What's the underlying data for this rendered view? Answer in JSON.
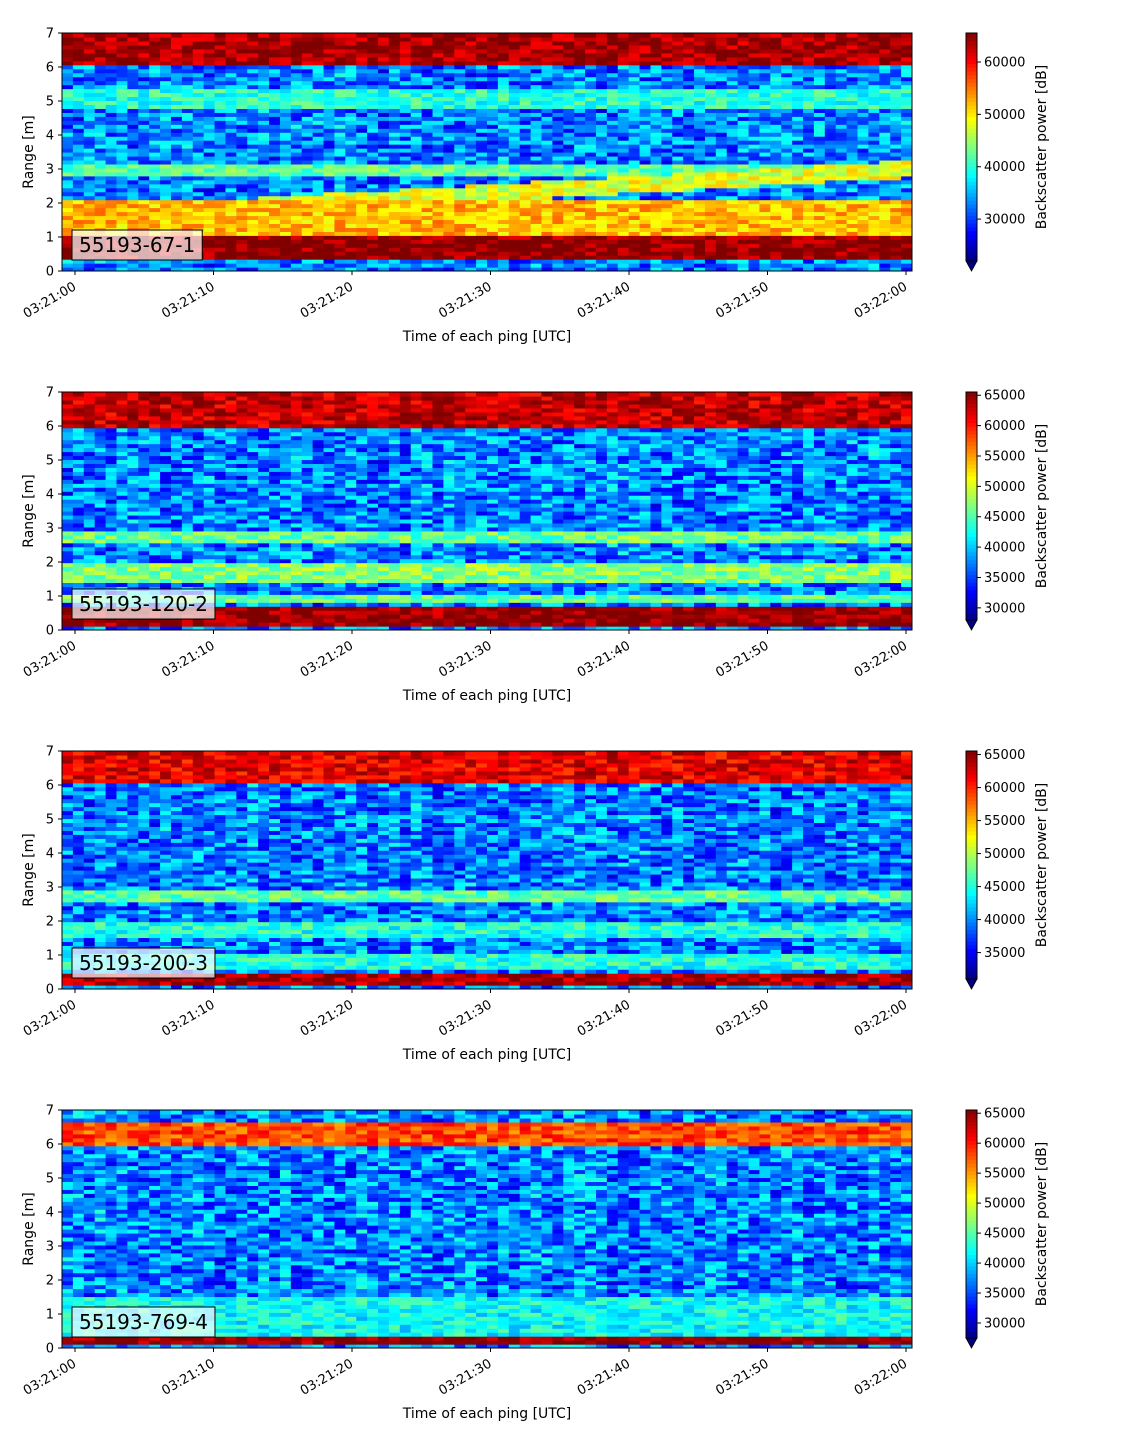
{
  "chart_data": [
    {
      "type": "heatmap",
      "panel_label": "55193-67-1",
      "xlabel": "Time of each ping [UTC]",
      "ylabel": "Range [m]",
      "x_ticks": [
        "03:21:00",
        "03:21:10",
        "03:21:20",
        "03:21:30",
        "03:21:40",
        "03:21:50",
        "03:22:00"
      ],
      "xlim": [
        "03:21:00",
        "03:22:00"
      ],
      "y_ticks": [
        0,
        1,
        2,
        3,
        4,
        5,
        6,
        7
      ],
      "ylim": [
        0,
        7
      ],
      "colorbar": {
        "label": "Backscatter power [dB]",
        "ticks": [
          30000,
          40000,
          50000,
          60000
        ],
        "range": [
          22000,
          65535
        ],
        "colormap": "jet",
        "extend": "min"
      },
      "features": [
        {
          "desc": "surface band",
          "range_m": [
            0.3,
            1.0
          ],
          "value": 65000
        },
        {
          "desc": "bright layer",
          "range_m": [
            1.0,
            2.1
          ],
          "value": 52000
        },
        {
          "desc": "rising layer",
          "start": "03:21:00",
          "end": "03:22:00",
          "range_m": [
            1.6,
            3.0
          ],
          "value": 48000
        },
        {
          "desc": "layer",
          "range_m": [
            2.8,
            3.2
          ],
          "value": 42000
        },
        {
          "desc": "band",
          "range_m": [
            4.8,
            5.4
          ],
          "value": 40000
        },
        {
          "desc": "top band",
          "range_m": [
            6.1,
            7.0
          ],
          "value": 64000
        }
      ]
    },
    {
      "type": "heatmap",
      "panel_label": "55193-120-2",
      "xlabel": "Time of each ping [UTC]",
      "ylabel": "Range [m]",
      "x_ticks": [
        "03:21:00",
        "03:21:10",
        "03:21:20",
        "03:21:30",
        "03:21:40",
        "03:21:50",
        "03:22:00"
      ],
      "xlim": [
        "03:21:00",
        "03:22:00"
      ],
      "y_ticks": [
        0,
        1,
        2,
        3,
        4,
        5,
        6,
        7
      ],
      "ylim": [
        0,
        7
      ],
      "colorbar": {
        "label": "Backscatter power [dB]",
        "ticks": [
          30000,
          35000,
          40000,
          45000,
          50000,
          55000,
          60000,
          65000
        ],
        "range": [
          28000,
          65535
        ],
        "colormap": "jet",
        "extend": "min"
      },
      "features": [
        {
          "desc": "surface band",
          "range_m": [
            0.1,
            0.7
          ],
          "value": 65000
        },
        {
          "desc": "layer",
          "range_m": [
            0.8,
            1.1
          ],
          "value": 46000
        },
        {
          "desc": "layer",
          "range_m": [
            1.4,
            2.0
          ],
          "value": 47000
        },
        {
          "desc": "layer",
          "range_m": [
            2.6,
            2.9
          ],
          "value": 46000
        },
        {
          "desc": "top band",
          "range_m": [
            6.0,
            7.0
          ],
          "value": 63000
        }
      ]
    },
    {
      "type": "heatmap",
      "panel_label": "55193-200-3",
      "xlabel": "Time of each ping [UTC]",
      "ylabel": "Range [m]",
      "x_ticks": [
        "03:21:00",
        "03:21:10",
        "03:21:20",
        "03:21:30",
        "03:21:40",
        "03:21:50",
        "03:22:00"
      ],
      "xlim": [
        "03:21:00",
        "03:22:00"
      ],
      "y_ticks": [
        0,
        1,
        2,
        3,
        4,
        5,
        6,
        7
      ],
      "ylim": [
        0,
        7
      ],
      "colorbar": {
        "label": "Backscatter power [dB]",
        "ticks": [
          35000,
          40000,
          45000,
          50000,
          55000,
          60000,
          65000
        ],
        "range": [
          31000,
          65535
        ],
        "colormap": "jet",
        "extend": "min"
      },
      "features": [
        {
          "desc": "surface band",
          "range_m": [
            0.1,
            0.5
          ],
          "value": 64000
        },
        {
          "desc": "layer",
          "range_m": [
            0.6,
            1.0
          ],
          "value": 45000
        },
        {
          "desc": "layer",
          "range_m": [
            1.5,
            2.0
          ],
          "value": 45000
        },
        {
          "desc": "layer",
          "range_m": [
            2.6,
            2.9
          ],
          "value": 47000
        },
        {
          "desc": "top band",
          "range_m": [
            6.1,
            7.0
          ],
          "value": 62000
        }
      ]
    },
    {
      "type": "heatmap",
      "panel_label": "55193-769-4",
      "xlabel": "Time of each ping [UTC]",
      "ylabel": "Range [m]",
      "x_ticks": [
        "03:21:00",
        "03:21:10",
        "03:21:20",
        "03:21:30",
        "03:21:40",
        "03:21:50",
        "03:22:00"
      ],
      "xlim": [
        "03:21:00",
        "03:22:00"
      ],
      "y_ticks": [
        0,
        1,
        2,
        3,
        4,
        5,
        6,
        7
      ],
      "ylim": [
        0,
        7
      ],
      "colorbar": {
        "label": "Backscatter power [dB]",
        "ticks": [
          30000,
          35000,
          40000,
          45000,
          50000,
          55000,
          60000,
          65000
        ],
        "range": [
          27500,
          65535
        ],
        "colormap": "jet",
        "extend": "min"
      },
      "features": [
        {
          "desc": "surface band",
          "range_m": [
            0.1,
            0.35
          ],
          "value": 65000
        },
        {
          "desc": "diffuse layer",
          "range_m": [
            0.4,
            1.5
          ],
          "value": 42000
        },
        {
          "desc": "top band",
          "range_m": [
            6.0,
            6.7
          ],
          "value": 58000
        }
      ]
    }
  ]
}
